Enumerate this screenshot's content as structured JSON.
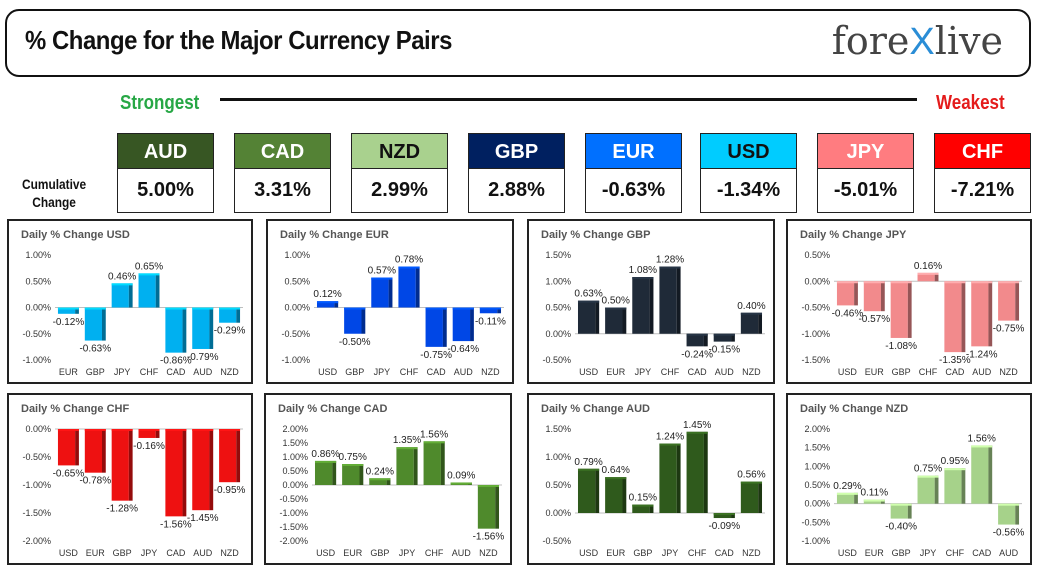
{
  "header": {
    "title": "% Change for the Major Currency Pairs",
    "logo_left": "fore",
    "logo_x": "X",
    "logo_right": "live"
  },
  "scale": {
    "strongest": "Strongest",
    "weakest": "Weakest"
  },
  "cumulative_label_1": "Cumulative",
  "cumulative_label_2": "Change",
  "cumulative": [
    {
      "code": "AUD",
      "value": "5.00%",
      "bg": "#375623",
      "fg": "#ffffff"
    },
    {
      "code": "CAD",
      "value": "3.31%",
      "bg": "#548235",
      "fg": "#ffffff"
    },
    {
      "code": "NZD",
      "value": "2.99%",
      "bg": "#a9d18e",
      "fg": "#111111"
    },
    {
      "code": "GBP",
      "value": "2.88%",
      "bg": "#002060",
      "fg": "#ffffff"
    },
    {
      "code": "EUR",
      "value": "-0.63%",
      "bg": "#0070ff",
      "fg": "#ffffff"
    },
    {
      "code": "USD",
      "value": "-1.34%",
      "bg": "#00ccff",
      "fg": "#111111"
    },
    {
      "code": "JPY",
      "value": "-5.01%",
      "bg": "#ff7c80",
      "fg": "#ffffff"
    },
    {
      "code": "CHF",
      "value": "-7.21%",
      "bg": "#ff0000",
      "fg": "#ffffff"
    }
  ],
  "chart_data": [
    {
      "type": "bar",
      "title": "Daily % Change USD",
      "categories": [
        "EUR",
        "GBP",
        "JPY",
        "CHF",
        "CAD",
        "AUD",
        "NZD"
      ],
      "values": [
        -0.12,
        -0.63,
        0.46,
        0.65,
        -0.86,
        -0.79,
        -0.29
      ],
      "labels": [
        "-0.12%",
        "-0.63%",
        "0.46%",
        "0.65%",
        "-0.86%",
        "-0.79%",
        "-0.29%"
      ],
      "ylim": [
        -1.0,
        1.0
      ],
      "ticks": [
        1.0,
        0.5,
        0.0,
        -0.5,
        -1.0
      ],
      "tick_labels": [
        "1.00%",
        "0.50%",
        "0.00%",
        "-0.50%",
        "-1.00%"
      ],
      "color": "#00b0f0"
    },
    {
      "type": "bar",
      "title": "Daily % Change EUR",
      "categories": [
        "USD",
        "GBP",
        "JPY",
        "CHF",
        "CAD",
        "AUD",
        "NZD"
      ],
      "values": [
        0.12,
        -0.5,
        0.57,
        0.78,
        -0.75,
        -0.64,
        -0.11
      ],
      "labels": [
        "0.12%",
        "-0.50%",
        "0.57%",
        "0.78%",
        "-0.75%",
        "-0.64%",
        "-0.11%"
      ],
      "ylim": [
        -1.0,
        1.0
      ],
      "ticks": [
        1.0,
        0.5,
        0.0,
        -0.5,
        -1.0
      ],
      "tick_labels": [
        "1.00%",
        "0.50%",
        "0.00%",
        "-0.50%",
        "-1.00%"
      ],
      "color": "#0047e6"
    },
    {
      "type": "bar",
      "title": "Daily % Change GBP",
      "categories": [
        "USD",
        "EUR",
        "JPY",
        "CHF",
        "CAD",
        "AUD",
        "NZD"
      ],
      "values": [
        0.63,
        0.5,
        1.08,
        1.28,
        -0.24,
        -0.15,
        0.4
      ],
      "labels": [
        "0.63%",
        "0.50%",
        "1.08%",
        "1.28%",
        "-0.24%",
        "-0.15%",
        "0.40%"
      ],
      "ylim": [
        -0.5,
        1.5
      ],
      "ticks": [
        1.5,
        1.0,
        0.5,
        0.0,
        -0.5
      ],
      "tick_labels": [
        "1.50%",
        "1.00%",
        "0.50%",
        "0.00%",
        "-0.50%"
      ],
      "color": "#1f2a38"
    },
    {
      "type": "bar",
      "title": "Daily % Change JPY",
      "categories": [
        "USD",
        "EUR",
        "GBP",
        "CHF",
        "CAD",
        "AUD",
        "NZD"
      ],
      "values": [
        -0.46,
        -0.57,
        -1.08,
        0.16,
        -1.35,
        -1.24,
        -0.75
      ],
      "labels": [
        "-0.46%",
        "-0.57%",
        "-1.08%",
        "0.16%",
        "-1.35%",
        "-1.24%",
        "-0.75%"
      ],
      "ylim": [
        -1.5,
        0.5
      ],
      "ticks": [
        0.5,
        0.0,
        -0.5,
        -1.0,
        -1.5
      ],
      "tick_labels": [
        "0.50%",
        "0.00%",
        "-0.50%",
        "-1.00%",
        "-1.50%"
      ],
      "color": "#f28a8c"
    },
    {
      "type": "bar",
      "title": "Daily % Change CHF",
      "categories": [
        "USD",
        "EUR",
        "GBP",
        "JPY",
        "CAD",
        "AUD",
        "NZD"
      ],
      "values": [
        -0.65,
        -0.78,
        -1.28,
        -0.16,
        -1.56,
        -1.45,
        -0.95
      ],
      "labels": [
        "-0.65%",
        "-0.78%",
        "-1.28%",
        "-0.16%",
        "-1.56%",
        "-1.45%",
        "-0.95%"
      ],
      "ylim": [
        -2.0,
        0.0
      ],
      "ticks": [
        0.0,
        -0.5,
        -1.0,
        -1.5,
        -2.0
      ],
      "tick_labels": [
        "0.00%",
        "-0.50%",
        "-1.00%",
        "-1.50%",
        "-2.00%"
      ],
      "color": "#ee1111"
    },
    {
      "type": "bar",
      "title": "Daily % Change CAD",
      "categories": [
        "USD",
        "EUR",
        "GBP",
        "JPY",
        "CHF",
        "AUD",
        "NZD"
      ],
      "values": [
        0.86,
        0.75,
        0.24,
        1.35,
        1.56,
        0.09,
        -1.56
      ],
      "labels": [
        "0.86%",
        "0.75%",
        "0.24%",
        "1.35%",
        "1.56%",
        "0.09%",
        "-1.56%"
      ],
      "ylim": [
        -2.0,
        2.0
      ],
      "ticks": [
        2.0,
        1.5,
        1.0,
        0.5,
        0.0,
        -0.5,
        -1.0,
        -1.5,
        -2.0
      ],
      "tick_labels": [
        "2.00%",
        "1.50%",
        "1.00%",
        "0.50%",
        "0.00%",
        "-0.50%",
        "-1.00%",
        "-1.50%",
        "-2.00%"
      ],
      "color": "#4f8a2c"
    },
    {
      "type": "bar",
      "title": "Daily % Change AUD",
      "categories": [
        "USD",
        "EUR",
        "GBP",
        "JPY",
        "CHF",
        "CAD",
        "NZD"
      ],
      "values": [
        0.79,
        0.64,
        0.15,
        1.24,
        1.45,
        -0.09,
        0.56
      ],
      "labels": [
        "0.79%",
        "0.64%",
        "0.15%",
        "1.24%",
        "1.45%",
        "-0.09%",
        "0.56%"
      ],
      "ylim": [
        -0.5,
        1.5
      ],
      "ticks": [
        1.5,
        1.0,
        0.5,
        0.0,
        -0.5
      ],
      "tick_labels": [
        "1.50%",
        "1.00%",
        "0.50%",
        "0.00%",
        "-0.50%"
      ],
      "color": "#2f5a1c"
    },
    {
      "type": "bar",
      "title": "Daily % Change NZD",
      "categories": [
        "USD",
        "EUR",
        "GBP",
        "JPY",
        "CHF",
        "CAD",
        "AUD"
      ],
      "values": [
        0.29,
        0.11,
        -0.4,
        0.75,
        0.95,
        1.56,
        -0.56
      ],
      "labels": [
        "0.29%",
        "0.11%",
        "-0.40%",
        "0.75%",
        "0.95%",
        "1.56%",
        "-0.56%"
      ],
      "ylim": [
        -1.0,
        2.0
      ],
      "ticks": [
        2.0,
        1.5,
        1.0,
        0.5,
        0.0,
        -0.5,
        -1.0
      ],
      "tick_labels": [
        "2.00%",
        "1.50%",
        "1.00%",
        "0.50%",
        "0.00%",
        "-0.50%",
        "-1.00%"
      ],
      "color": "#a6d28a"
    }
  ]
}
